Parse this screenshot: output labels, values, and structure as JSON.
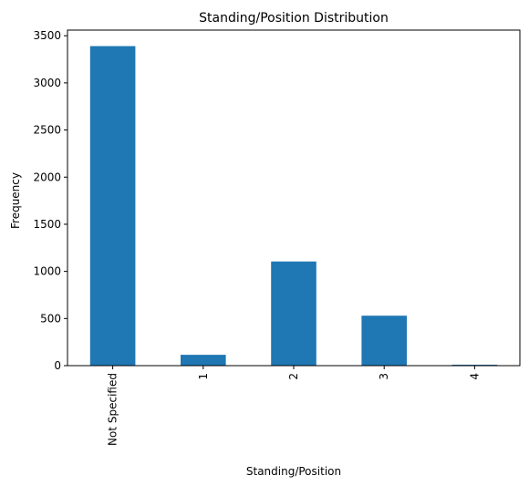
{
  "chart_data": {
    "type": "bar",
    "title": "Standing/Position Distribution",
    "xlabel": "Standing/Position",
    "ylabel": "Frequency",
    "categories": [
      "Not Specified",
      "1",
      "2",
      "3",
      "4"
    ],
    "values": [
      3390,
      115,
      1105,
      530,
      10
    ],
    "ylim": [
      0,
      3560
    ],
    "yticks": [
      0,
      500,
      1000,
      1500,
      2000,
      2500,
      3000,
      3500
    ],
    "xtick_rotation": "vertical",
    "grid": false,
    "bar_color": "#1f77b4"
  }
}
